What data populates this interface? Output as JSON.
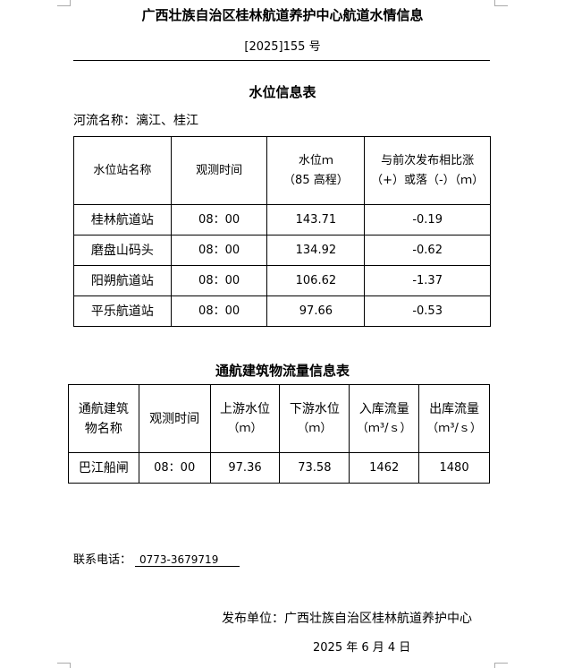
{
  "header": {
    "title": "广西壮族自治区桂林航道养护中心航道水情信息",
    "doc_no": "[2025]155 号"
  },
  "water_level": {
    "title": "水位信息表",
    "river": "河流名称：漓江、桂江",
    "columns": [
      "水位站名称",
      "观测时间",
      "水位ｍ",
      "（85 高程）",
      "与前次发布相比涨",
      "（+）或落（-）（ｍ）"
    ],
    "rows": [
      {
        "station": "桂林航道站",
        "time": "08：00",
        "level": "143.71",
        "change": "-0.19"
      },
      {
        "station": "磨盘山码头",
        "time": "08：00",
        "level": "134.92",
        "change": "-0.62"
      },
      {
        "station": "阳朔航道站",
        "time": "08：00",
        "level": "106.62",
        "change": "-1.37"
      },
      {
        "station": "平乐航道站",
        "time": "08：00",
        "level": "97.66",
        "change": "-0.53"
      }
    ]
  },
  "flow": {
    "title": "通航建筑物流量信息表",
    "columns": [
      "通航建筑",
      "物名称",
      "观测时间",
      "上游水位",
      "（ｍ）",
      "下游水位",
      "（ｍ）",
      "入库流量",
      "（ｍ³/ｓ）",
      "出库流量",
      "（ｍ³/ｓ）"
    ],
    "rows": [
      {
        "name": "巴江船闸",
        "time": "08：00",
        "upstream": "97.36",
        "downstream": "73.58",
        "inflow": "1462",
        "outflow": "1480"
      }
    ]
  },
  "footer": {
    "contact_label": "联系电话：",
    "phone": "0773-3679719",
    "publisher": "发布单位：广西壮族自治区桂林航道养护中心",
    "date": "2025 年 6 月 4 日"
  }
}
